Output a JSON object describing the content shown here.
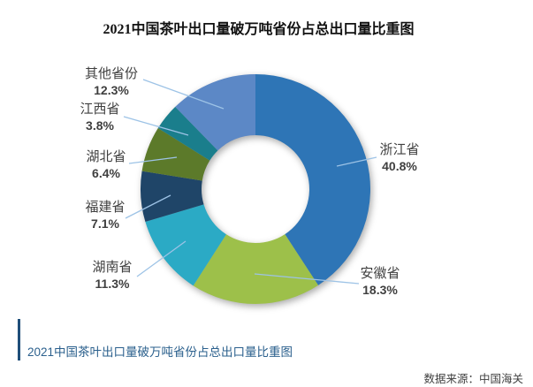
{
  "title": "2021中国茶叶出口量破万吨省份占总出口量比重图",
  "caption": "2021中国茶叶出口量破万吨省份占总出口量比重图",
  "source": "数据来源：中国海关",
  "chart_data": {
    "type": "pie",
    "subtype": "donut",
    "title": "2021中国茶叶出口量破万吨省份占总出口量比重图",
    "categories": [
      "浙江省",
      "安徽省",
      "湖南省",
      "福建省",
      "湖北省",
      "江西省",
      "其他省份"
    ],
    "values": [
      40.8,
      18.3,
      11.3,
      7.1,
      6.4,
      3.8,
      12.3
    ],
    "percent_labels": [
      "40.8%",
      "18.3%",
      "11.3%",
      "7.1%",
      "6.4%",
      "3.8%",
      "12.3%"
    ],
    "colors": [
      "#2E75B6",
      "#9DC04A",
      "#2BAAC5",
      "#1F4568",
      "#5C7A2A",
      "#1A7E8C",
      "#5C88C6"
    ],
    "start_angle_deg": 0,
    "direction": "clockwise",
    "legend": "none",
    "leader_line_color": "#9DC3E6",
    "label_text_color": "#3f3f3f"
  }
}
